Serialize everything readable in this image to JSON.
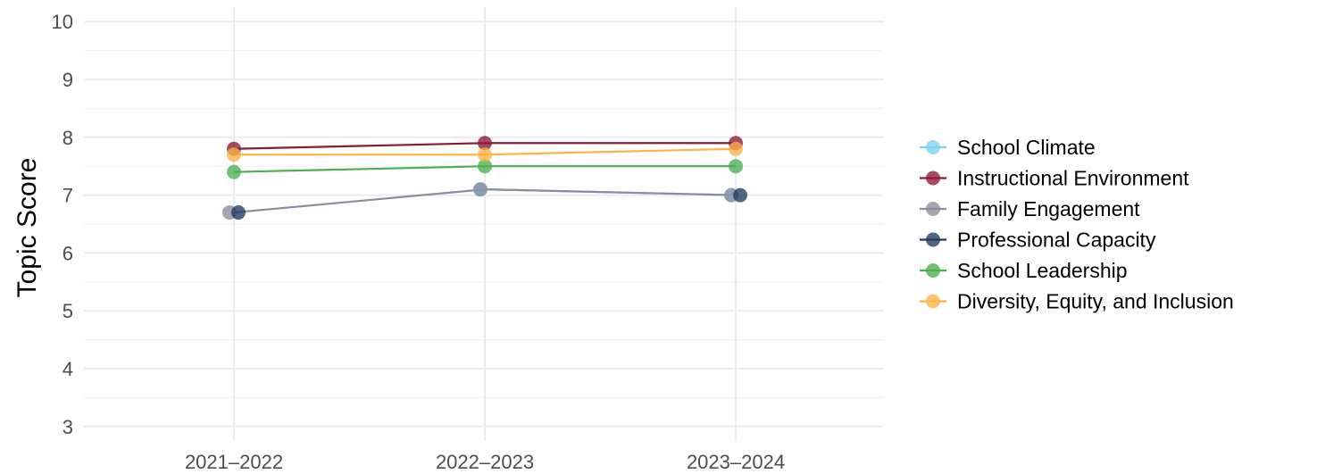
{
  "chart_data": {
    "type": "line",
    "title": "",
    "xlabel": "",
    "ylabel": "Topic Score",
    "categories": [
      "2021–2022",
      "2022–2023",
      "2023–2024"
    ],
    "ylim": [
      2.75,
      10.25
    ],
    "yticks": [
      3,
      4,
      5,
      6,
      7,
      8,
      9,
      10
    ],
    "grid": true,
    "legend_position": "right",
    "series": [
      {
        "name": "School Climate",
        "color": "#7DCFF2",
        "values": [
          null,
          7.1,
          7.0
        ]
      },
      {
        "name": "Instructional Environment",
        "color": "#8B1A3A",
        "values": [
          7.8,
          7.9,
          7.9
        ]
      },
      {
        "name": "Family Engagement",
        "color": "#8C8C9C",
        "values": [
          6.7,
          7.1,
          7.0
        ]
      },
      {
        "name": "Professional Capacity",
        "color": "#1F3A5F",
        "values": [
          6.7,
          null,
          7.0
        ]
      },
      {
        "name": "School Leadership",
        "color": "#4CAF50",
        "values": [
          7.4,
          7.5,
          7.5
        ]
      },
      {
        "name": "Diversity, Equity, and Inclusion",
        "color": "#FDB347",
        "values": [
          7.7,
          7.7,
          7.8
        ]
      }
    ]
  }
}
